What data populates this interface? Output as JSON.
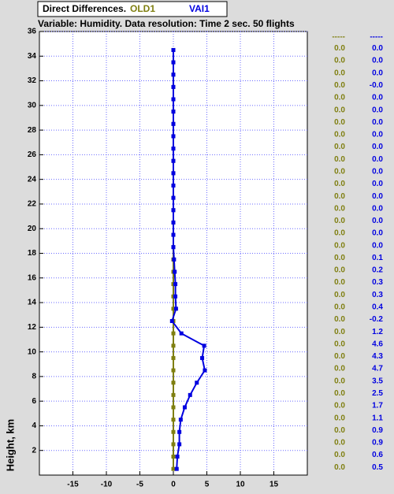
{
  "chart_data": {
    "type": "profile",
    "legend_title": "Direct Differences.",
    "title": "Variable: Humidity. Data resolution: Time 2 sec. 50 flights",
    "y_label": "Height, km",
    "y": [
      0.5,
      1.5,
      2.5,
      3.5,
      4.5,
      5.5,
      6.5,
      7.5,
      8.5,
      9.5,
      10.5,
      11.5,
      12.5,
      13.5,
      14.5,
      15.5,
      16.5,
      17.5,
      18.5,
      19.5,
      20.5,
      21.5,
      22.5,
      23.5,
      24.5,
      25.5,
      26.5,
      27.5,
      28.5,
      29.5,
      30.5,
      31.5,
      32.5,
      33.5,
      34.5
    ],
    "series": [
      {
        "name": "OLD1",
        "color": "#7f7f10",
        "column_header": "-----",
        "values": [
          0,
          0,
          0,
          0,
          0,
          0,
          0,
          0,
          0,
          0,
          0,
          0,
          0,
          0,
          0,
          0,
          0,
          0,
          0,
          0,
          0,
          0,
          0,
          0,
          0,
          0,
          0,
          0,
          0,
          0,
          0,
          0,
          0,
          0,
          0
        ],
        "value_labels": [
          "0.0",
          "0.0",
          "0.0",
          "0.0",
          "0.0",
          "0.0",
          "0.0",
          "0.0",
          "0.0",
          "0.0",
          "0.0",
          "0.0",
          "0.0",
          "0.0",
          "0.0",
          "0.0",
          "0.0",
          "0.0",
          "0.0",
          "0.0",
          "0.0",
          "0.0",
          "0.0",
          "0.0",
          "0.0",
          "0.0",
          "0.0",
          "0.0",
          "0.0",
          "0.0",
          "0.0",
          "0.0",
          "0.0",
          "0.0",
          "0.0"
        ]
      },
      {
        "name": "VAI1",
        "color": "#0000e0",
        "column_header": "-----",
        "values": [
          0.5,
          0.6,
          0.9,
          0.9,
          1.1,
          1.7,
          2.5,
          3.5,
          4.7,
          4.3,
          4.6,
          1.2,
          -0.2,
          0.4,
          0.3,
          0.3,
          0.2,
          0.1,
          0,
          0,
          0,
          0,
          0,
          0,
          0,
          0,
          0,
          0,
          0,
          0,
          0,
          0,
          0,
          0,
          0
        ],
        "value_labels": [
          "0.5",
          "0.6",
          "0.9",
          "0.9",
          "1.1",
          "1.7",
          "2.5",
          "3.5",
          "4.7",
          "4.3",
          "4.6",
          "1.2",
          "-0.2",
          "0.4",
          "0.3",
          "0.3",
          "0.2",
          "0.1",
          "0.0",
          "0.0",
          "0.0",
          "0.0",
          "0.0",
          "0.0",
          "0.0",
          "0.0",
          "0.0",
          "0.0",
          "0.0",
          "0.0",
          "0.0",
          "-0.0",
          "0.0",
          "0.0",
          "0.0"
        ]
      }
    ],
    "xlim": [
      -20,
      20
    ],
    "xticks": [
      -15,
      -10,
      -5,
      0,
      5,
      10,
      15
    ],
    "ylim": [
      0,
      36
    ],
    "yticks": [
      2,
      4,
      6,
      8,
      10,
      12,
      14,
      16,
      18,
      20,
      22,
      24,
      26,
      28,
      30,
      32,
      34,
      36
    ],
    "grid": true
  }
}
